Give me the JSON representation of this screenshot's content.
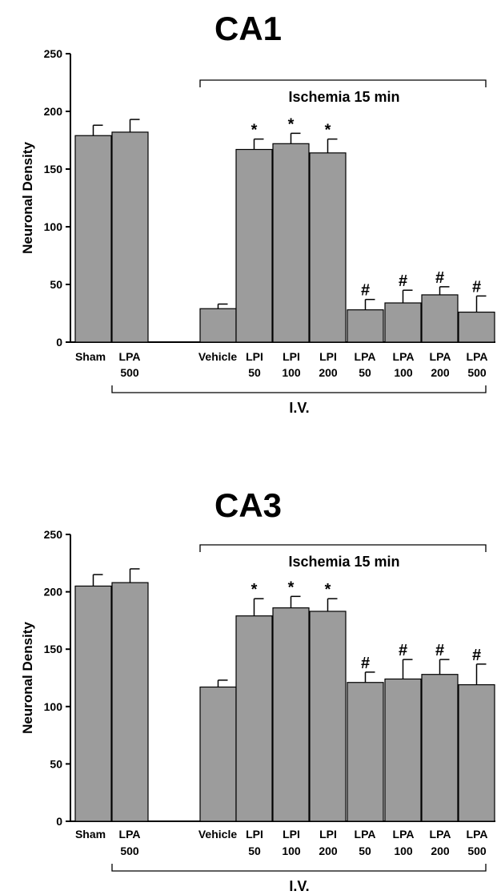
{
  "chart_data": [
    {
      "type": "bar",
      "title": "CA1",
      "ylabel": "Neuronal Density",
      "ylim": [
        0,
        250
      ],
      "yticks": [
        "0",
        "50",
        "100",
        "150",
        "200",
        "250"
      ],
      "categories": [
        {
          "line1": "Sham",
          "line2": ""
        },
        {
          "line1": "LPA",
          "line2": "500"
        },
        {
          "line1": "Vehicle",
          "line2": ""
        },
        {
          "line1": "LPI",
          "line2": "50"
        },
        {
          "line1": "LPI",
          "line2": "100"
        },
        {
          "line1": "LPI",
          "line2": "200"
        },
        {
          "line1": "LPA",
          "line2": "50"
        },
        {
          "line1": "LPA",
          "line2": "100"
        },
        {
          "line1": "LPA",
          "line2": "200"
        },
        {
          "line1": "LPA",
          "line2": "500"
        }
      ],
      "values": [
        179,
        182,
        29,
        167,
        172,
        164,
        28,
        34,
        41,
        26
      ],
      "errors": [
        9,
        11,
        4,
        9,
        9,
        12,
        9,
        11,
        7,
        14
      ],
      "markers": [
        "",
        "",
        "",
        "*",
        "*",
        "*",
        "#",
        "#",
        "#",
        "#"
      ],
      "group_top": "Ischemia 15 min",
      "group_bottom": "I.V."
    },
    {
      "type": "bar",
      "title": "CA3",
      "ylabel": "Neuronal Density",
      "ylim": [
        0,
        250
      ],
      "yticks": [
        "0",
        "50",
        "100",
        "150",
        "200",
        "250"
      ],
      "categories": [
        {
          "line1": "Sham",
          "line2": ""
        },
        {
          "line1": "LPA",
          "line2": "500"
        },
        {
          "line1": "Vehicle",
          "line2": ""
        },
        {
          "line1": "LPI",
          "line2": "50"
        },
        {
          "line1": "LPI",
          "line2": "100"
        },
        {
          "line1": "LPI",
          "line2": "200"
        },
        {
          "line1": "LPA",
          "line2": "50"
        },
        {
          "line1": "LPA",
          "line2": "100"
        },
        {
          "line1": "LPA",
          "line2": "200"
        },
        {
          "line1": "LPA",
          "line2": "500"
        }
      ],
      "values": [
        205,
        208,
        117,
        179,
        186,
        183,
        121,
        124,
        128,
        119
      ],
      "errors": [
        10,
        12,
        6,
        15,
        10,
        11,
        9,
        17,
        13,
        18
      ],
      "markers": [
        "",
        "",
        "",
        "*",
        "*",
        "*",
        "#",
        "#",
        "#",
        "#"
      ],
      "group_top": "Ischemia 15 min",
      "group_bottom": "I.V."
    }
  ]
}
